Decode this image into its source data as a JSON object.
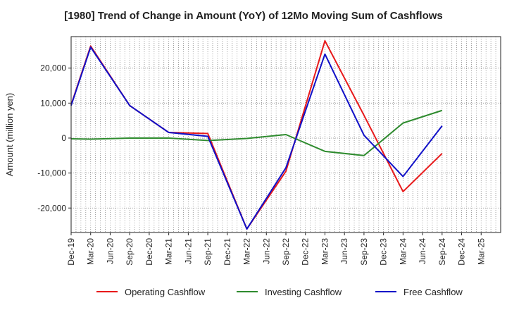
{
  "chart_data": {
    "type": "line",
    "title": "[1980]  Trend of Change in Amount (YoY) of 12Mo Moving Sum of Cashflows",
    "xlabel": "",
    "ylabel": "Amount (million yen)",
    "ylim": [
      -27000,
      29000
    ],
    "yticks": [
      -20000,
      -10000,
      0,
      10000,
      20000
    ],
    "ytick_labels": [
      "-20,000",
      "-10,000",
      "0",
      "10,000",
      "20,000"
    ],
    "categories": [
      "Dec-19",
      "Mar-20",
      "Jun-20",
      "Sep-20",
      "Dec-20",
      "Mar-21",
      "Jun-21",
      "Sep-21",
      "Dec-21",
      "Mar-22",
      "Jun-22",
      "Sep-22",
      "Dec-22",
      "Mar-23",
      "Jun-23",
      "Sep-23",
      "Dec-23",
      "Mar-24",
      "Jun-24",
      "Sep-24",
      "Dec-24",
      "Mar-25"
    ],
    "series": [
      {
        "name": "Operating Cashflow",
        "color": "#e8191a",
        "values": [
          9500,
          26300,
          null,
          9300,
          null,
          1600,
          null,
          1300,
          null,
          -26000,
          null,
          -9500,
          null,
          27800,
          null,
          6500,
          null,
          -15300,
          null,
          -4400,
          null,
          null
        ]
      },
      {
        "name": "Investing Cashflow",
        "color": "#2e8b2e",
        "values": [
          -200,
          -300,
          null,
          0,
          null,
          0,
          null,
          -700,
          null,
          -100,
          null,
          1000,
          null,
          -3800,
          null,
          -5000,
          null,
          4300,
          null,
          7900,
          null,
          null
        ]
      },
      {
        "name": "Free Cashflow",
        "color": "#1010c8",
        "values": [
          9300,
          26000,
          null,
          9300,
          null,
          1600,
          null,
          500,
          null,
          -26000,
          null,
          -8500,
          null,
          24000,
          null,
          800,
          null,
          -11000,
          null,
          3500,
          null,
          null
        ]
      }
    ],
    "grid": true,
    "legend_position": "bottom"
  }
}
